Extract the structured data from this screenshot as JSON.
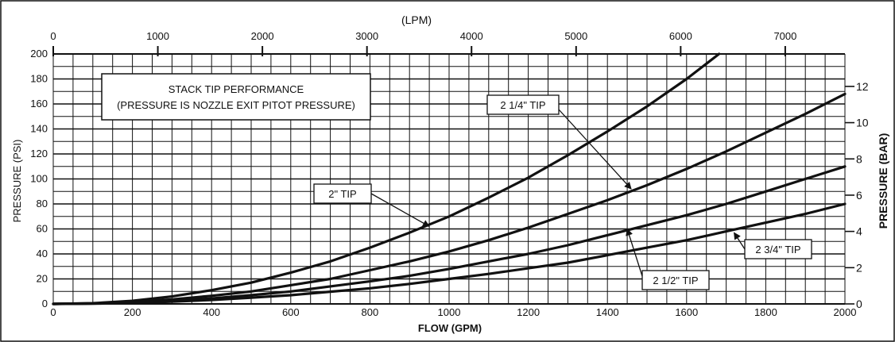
{
  "chart_data": {
    "type": "line",
    "title": "",
    "annotation_lines": [
      "STACK TIP PERFORMANCE",
      "(PRESSURE IS NOZZLE EXIT PITOT PRESSURE)"
    ],
    "xlabel": "FLOW (GPM)",
    "ylabel": "PRESSURE (PSI)",
    "x2label": "(LPM)",
    "y2label": "PRESSURE (BAR)",
    "xlim": [
      0,
      2000
    ],
    "ylim": [
      0,
      200
    ],
    "x2lim": [
      0,
      7570.8
    ],
    "y2lim": [
      0,
      13.79
    ],
    "grid": true,
    "x_ticks": [
      "0",
      "200",
      "400",
      "600",
      "800",
      "1000",
      "1200",
      "1400",
      "1600",
      "1800",
      "2000"
    ],
    "y_ticks": [
      "0",
      "20",
      "40",
      "60",
      "80",
      "100",
      "120",
      "140",
      "160",
      "180",
      "200"
    ],
    "x2_ticks": [
      "0",
      "1000",
      "2000",
      "3000",
      "4000",
      "5000",
      "6000",
      "7000"
    ],
    "y2_ticks": [
      "0",
      "2",
      "4",
      "6",
      "8",
      "10",
      "12"
    ],
    "series": [
      {
        "name": "2\" TIP",
        "x": [
          0,
          100,
          200,
          300,
          400,
          500,
          600,
          700,
          800,
          900,
          1000,
          1100,
          1200,
          1300,
          1400,
          1500,
          1600,
          1682
        ],
        "y": [
          0,
          0.6,
          2.5,
          6,
          11,
          17,
          25,
          34,
          45,
          57,
          70,
          85,
          101,
          119,
          138,
          158,
          180,
          200
        ]
      },
      {
        "name": "2 1/4\" TIP",
        "x": [
          0,
          100,
          200,
          300,
          400,
          500,
          600,
          700,
          800,
          900,
          1000,
          1100,
          1200,
          1300,
          1400,
          1500,
          1600,
          1700,
          1800,
          1900,
          2000
        ],
        "y": [
          0,
          0.4,
          1.6,
          3.6,
          6.5,
          10,
          15,
          20,
          27,
          34,
          42,
          51,
          61,
          72,
          83,
          95,
          108,
          122,
          137,
          152,
          168
        ]
      },
      {
        "name": "2 1/2\" TIP",
        "x": [
          0,
          100,
          200,
          300,
          400,
          500,
          600,
          700,
          800,
          900,
          1000,
          1100,
          1200,
          1300,
          1400,
          1500,
          1600,
          1700,
          1800,
          1900,
          2000
        ],
        "y": [
          0,
          0.3,
          1.1,
          2.5,
          4.4,
          7,
          10,
          14,
          18,
          22.5,
          28,
          34,
          40,
          47,
          55,
          63,
          71,
          80,
          90,
          100,
          110
        ]
      },
      {
        "name": "2 3/4\" TIP",
        "x": [
          0,
          100,
          200,
          300,
          400,
          500,
          600,
          700,
          800,
          900,
          1000,
          1100,
          1200,
          1300,
          1400,
          1500,
          1600,
          1700,
          1800,
          1900,
          2000
        ],
        "y": [
          0,
          0.2,
          0.8,
          1.8,
          3.2,
          5,
          7,
          9.8,
          12.5,
          16,
          20,
          24,
          28.5,
          33,
          39,
          45,
          51,
          58,
          65,
          72,
          80
        ]
      }
    ],
    "callouts": [
      {
        "label": "2\" TIP",
        "series": 0,
        "anchor_x": 950,
        "anchor_y": 62
      },
      {
        "label": "2 1/4\" TIP",
        "series": 1,
        "anchor_x": 1460,
        "anchor_y": 92
      },
      {
        "label": "2 1/2\" TIP",
        "series": 2,
        "anchor_x": 1450,
        "anchor_y": 60
      },
      {
        "label": "2 3/4\" TIP",
        "series": 3,
        "anchor_x": 1720,
        "anchor_y": 57
      }
    ]
  }
}
